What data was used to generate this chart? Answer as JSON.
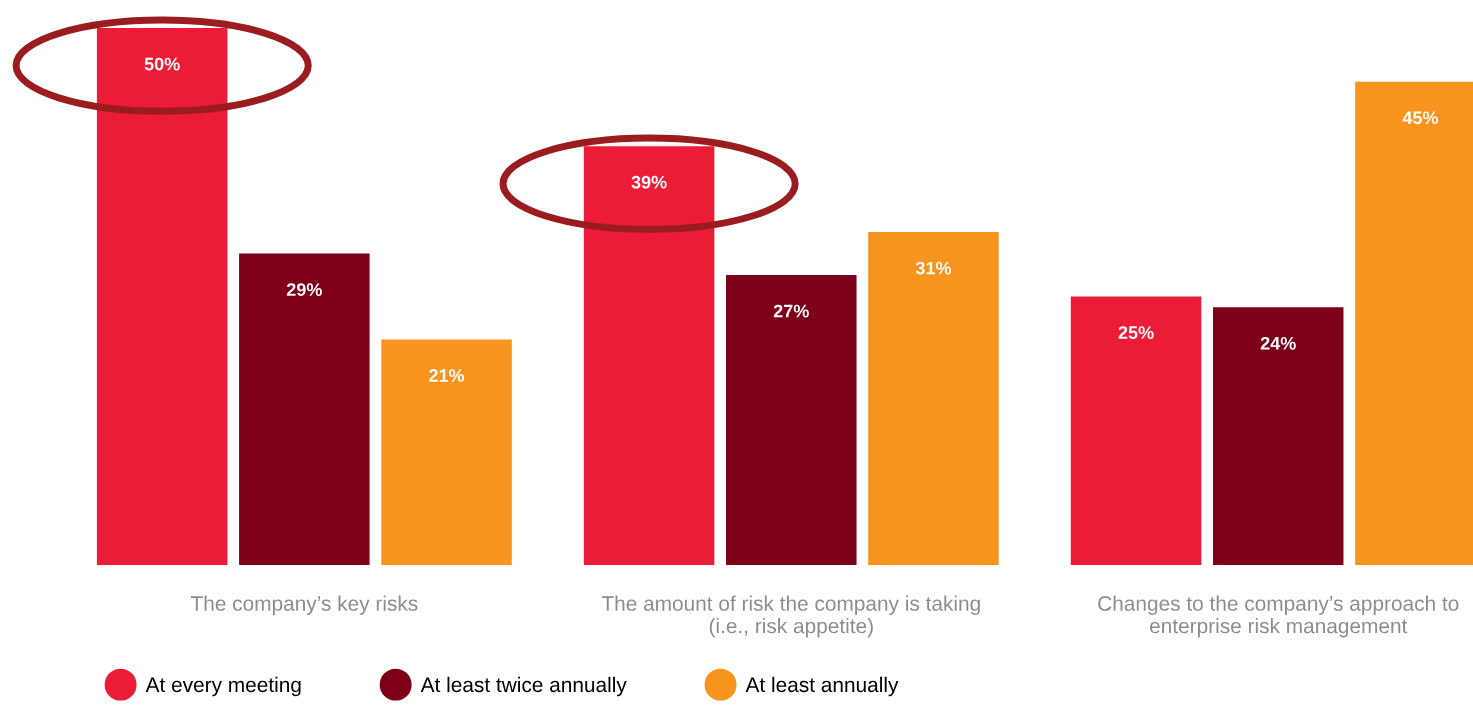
{
  "chart_data": {
    "type": "bar",
    "categories": [
      "The company’s key risks",
      "The amount of risk the company is taking\n(i.e., risk appetite)",
      "Changes to the company’s approach to\nenterprise risk management"
    ],
    "series": [
      {
        "name": "At every meeting",
        "color": "#ed1c36",
        "values": [
          50,
          39,
          25
        ],
        "value_labels": [
          "50%",
          "39%",
          "25%"
        ]
      },
      {
        "name": "At least twice annually",
        "color": "#7d0019",
        "values": [
          29,
          27,
          24
        ],
        "value_labels": [
          "29%",
          "27%",
          "24%"
        ]
      },
      {
        "name": "At least annually",
        "color": "#f7941d",
        "values": [
          21,
          31,
          45
        ],
        "value_labels": [
          "21%",
          "31%",
          "45%"
        ]
      }
    ],
    "legend": "bottom left",
    "grid": false,
    "tick_labels": "x"
  }
}
